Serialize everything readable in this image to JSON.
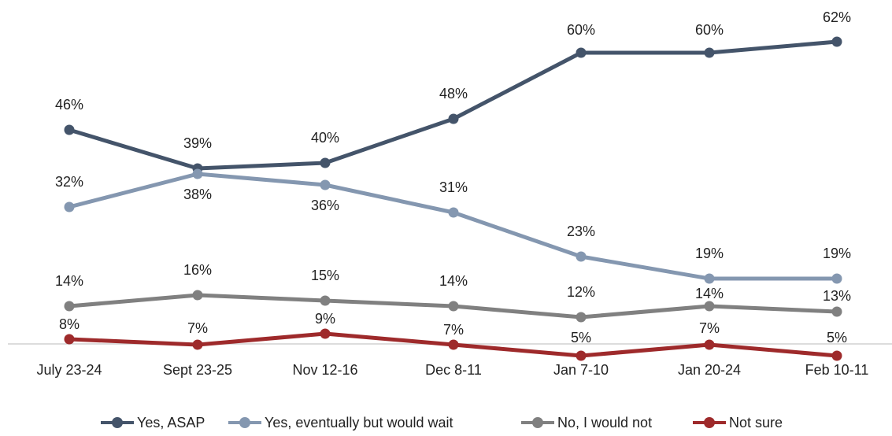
{
  "chart_data": {
    "type": "line",
    "categories": [
      "July 23-24",
      "Sept 23-25",
      "Nov 12-16",
      "Dec 8-11",
      "Jan 7-10",
      "Jan 20-24",
      "Feb 10-11"
    ],
    "ylim": [
      0,
      70
    ],
    "grid": false,
    "legend_position": "bottom",
    "series": [
      {
        "name": "Yes, ASAP",
        "color": "#44546A",
        "values": [
          46,
          39,
          40,
          48,
          60,
          60,
          62
        ],
        "labels": [
          "46%",
          "39%",
          "40%",
          "48%",
          "60%",
          "60%",
          "62%"
        ]
      },
      {
        "name": "Yes, eventually but would wait",
        "color": "#8497B0",
        "values": [
          32,
          38,
          36,
          31,
          23,
          19,
          19
        ],
        "labels": [
          "32%",
          "38%",
          "36%",
          "31%",
          "23%",
          "19%",
          "19%"
        ]
      },
      {
        "name": "No, I would not",
        "color": "#808080",
        "values": [
          14,
          16,
          15,
          14,
          12,
          14,
          13
        ],
        "labels": [
          "14%",
          "16%",
          "15%",
          "14%",
          "12%",
          "14%",
          "13%"
        ]
      },
      {
        "name": "Not sure",
        "color": "#9E2A2B",
        "values": [
          8,
          7,
          9,
          7,
          5,
          7,
          5
        ],
        "labels": [
          "8%",
          "7%",
          "9%",
          "7%",
          "5%",
          "7%",
          "5%"
        ]
      }
    ]
  }
}
